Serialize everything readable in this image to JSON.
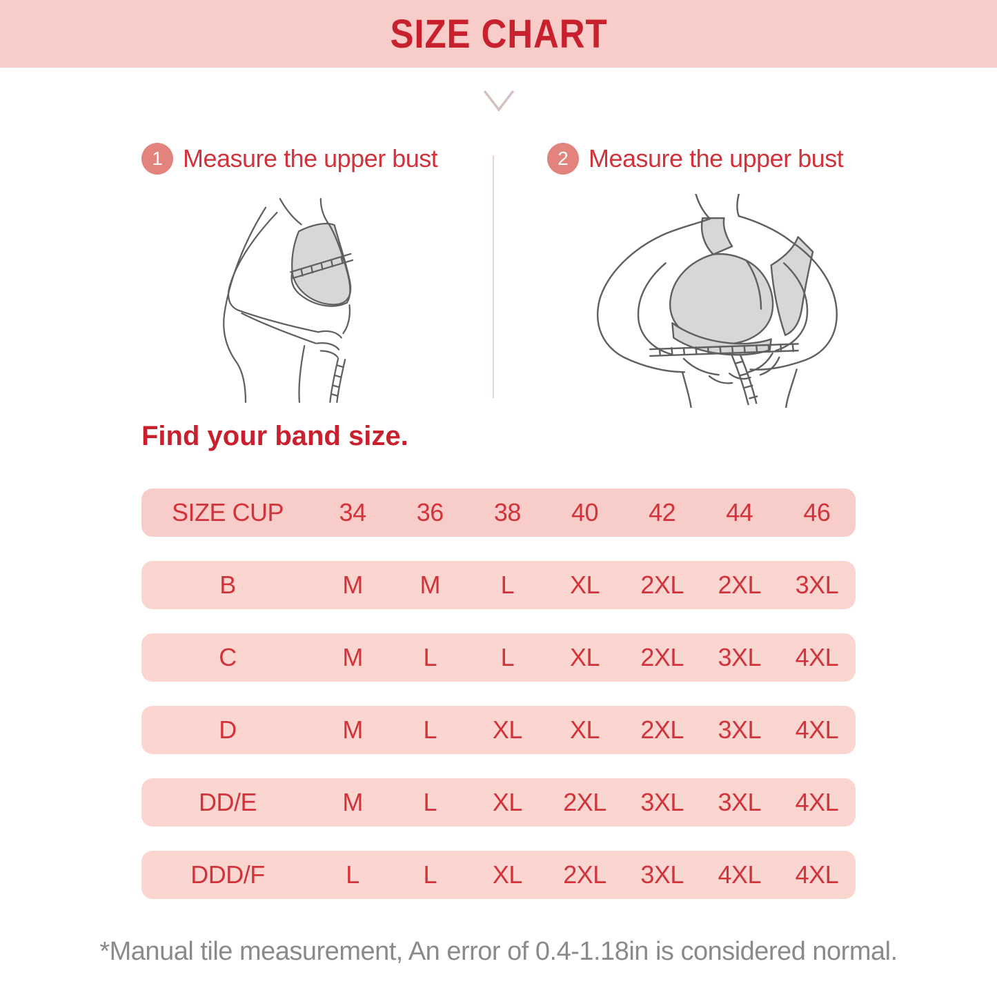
{
  "title": "SIZE CHART",
  "chevron": {
    "icon": "chevron-down"
  },
  "steps": [
    {
      "number": "1",
      "label": "Measure the upper bust"
    },
    {
      "number": "2",
      "label": "Measure the upper bust"
    }
  ],
  "band_heading": "Find your band size.",
  "chart_data": {
    "type": "table",
    "title": "SIZE CHART",
    "columns": [
      "SIZE CUP",
      "34",
      "36",
      "38",
      "40",
      "42",
      "44",
      "46"
    ],
    "rows": [
      [
        "B",
        "M",
        "M",
        "L",
        "XL",
        "2XL",
        "2XL",
        "3XL"
      ],
      [
        "C",
        "M",
        "L",
        "L",
        "XL",
        "2XL",
        "3XL",
        "4XL"
      ],
      [
        "D",
        "M",
        "L",
        "XL",
        "XL",
        "2XL",
        "3XL",
        "4XL"
      ],
      [
        "DD/E",
        "M",
        "L",
        "XL",
        "2XL",
        "3XL",
        "3XL",
        "4XL"
      ],
      [
        "DDD/F",
        "L",
        "L",
        "XL",
        "2XL",
        "3XL",
        "4XL",
        "4XL"
      ]
    ]
  },
  "footnote": "*Manual tile measurement, An error of 0.4-1.18in is considered normal.",
  "colors": {
    "banner_bg": "#f8ccc8",
    "row_bg": "#fbd5d0",
    "title_red": "#c9202e",
    "accent_red": "#d2333b",
    "step_circle_bg": "#e2837d",
    "step_number_color": "#ffffff",
    "divider_pink": "#e9d4d3",
    "chevron_gray": "#d6c0c0",
    "line_gray": "#606060",
    "fill_gray": "#d7d7d9",
    "footnote_gray": "#8a8a8a"
  }
}
